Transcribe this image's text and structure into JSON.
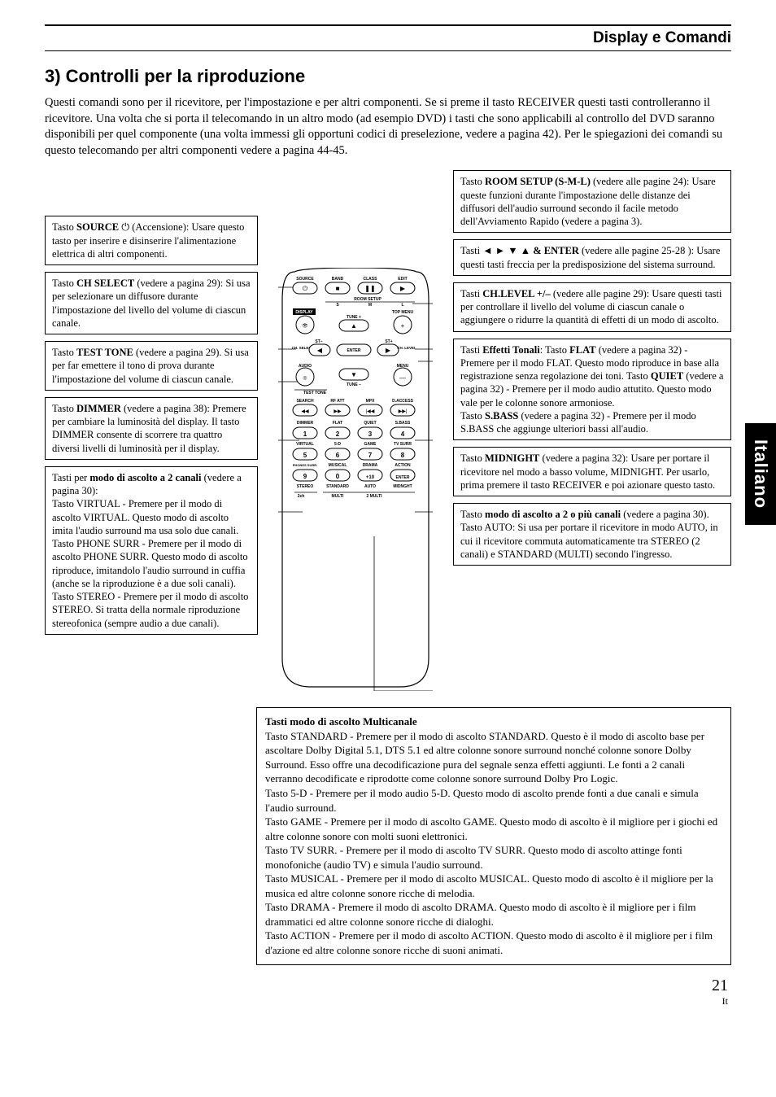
{
  "header": {
    "category": "Display e Comandi",
    "section_title": "3) Controlli per la riproduzione",
    "intro": "Questi comandi sono per il ricevitore, per l'impostazione e per altri componenti. Se si preme il tasto RECEIVER questi tasti controlleranno il ricevitore. Una volta che si porta il telecomando in un altro modo (ad esempio DVD) i tasti che sono applicabili al controllo del DVD saranno disponibili per quel componente (una volta immessi gli opportuni codici di preselezione, vedere a pagina 42). Per le spiegazioni dei comandi su questo telecomando per altri componenti vedere a pagina 44-45."
  },
  "left_boxes": [
    {
      "html": "Tasto <b>SOURCE</b> ⏻ (Accensione): Usare questo tasto per inserire e disinserire l'alimentazione elettrica di altri componenti."
    },
    {
      "html": "Tasto <b>CH SELECT</b> (vedere a pagina 29): Si usa per selezionare un diffusore durante l'impostazione del livello del volume di ciascun canale."
    },
    {
      "html": "Tasto <b>TEST TONE</b> (vedere a pagina 29). Si usa per far emettere il tono di prova durante l'impostazione del volume di ciascun canale."
    },
    {
      "html": "Tasto <b>DIMMER</b> (vedere a pagina 38): Premere per cambiare la luminosità del display. Il tasto DIMMER consente di scorrere tra quattro diversi livelli di luminosità per il display."
    },
    {
      "html": "Tasti per <b>modo di ascolto a 2 canali</b> (vedere a pagina 30):<br>Tasto VIRTUAL - Premere per il modo di ascolto VIRTUAL. Questo modo di ascolto imita l'audio surround ma usa solo due canali.<br>Tasto PHONE SURR - Premere per il modo di ascolto PHONE SURR. Questo modo di ascolto riproduce, imitandolo l'audio surround in cuffia (anche se la riproduzione è a due soli canali).<br>Tasto STEREO - Premere per il modo di ascolto STEREO. Si tratta della normale riproduzione stereofonica (sempre audio a due canali)."
    }
  ],
  "right_boxes": [
    {
      "html": "Tasto <b>ROOM SETUP (S-M-L)</b> (vedere alle pagine 24): Usare queste funzioni durante l'impostazione delle distanze dei diffusori dell'audio surround secondo il facile metodo dell'Avviamento Rapido (vedere a pagina 3)."
    },
    {
      "html": "Tasti <b>◄ ► ▼ ▲ & ENTER</b> (vedere alle pagine 25-28 ): Usare questi tasti freccia per la predisposizione del sistema surround."
    },
    {
      "html": "Tasti <b>CH.LEVEL +/–</b> (vedere alle pagine 29): Usare questi tasti per controllare il livello del volume di ciascun canale o aggiungere o ridurre la quantità di effetti di un modo di ascolto."
    },
    {
      "html": "Tasti <b>Effetti Tonali</b>: Tasto <b>FLAT</b> (vedere a pagina 32) - Premere per il modo FLAT. Questo modo riproduce in base alla registrazione senza regolazione dei toni. Tasto <b>QUIET</b> (vedere a pagina 32) - Premere per il modo audio attutito. Questo modo vale per le colonne sonore armoniose.<br>Tasto <b>S.BASS</b> (vedere a pagina 32) - Premere per il modo S.BASS che aggiunge ulteriori bassi all'audio."
    },
    {
      "html": "Tasto <b>MIDNIGHT</b> (vedere a pagina 32): Usare per portare il ricevitore nel modo a basso volume, MIDNIGHT. Per usarlo, prima premere il tasto RECEIVER e poi azionare questo tasto."
    },
    {
      "html": "Tasto <b>modo di ascolto a 2 o più canali</b> (vedere a pagina 30). Tasto AUTO: Si usa per portare il ricevitore in modo AUTO, in cui il ricevitore commuta automaticamente tra STEREO (2 canali) e STANDARD (MULTI) secondo l'ingresso."
    }
  ],
  "bottom_box": {
    "title": "Tasti modo di ascolto Multicanale",
    "body": "Tasto STANDARD - Premere per il modo di ascolto STANDARD. Questo è il modo di ascolto base per ascoltare Dolby Digital 5.1, DTS 5.1 ed altre colonne sonore surround nonché colonne sonore Dolby Surround. Esso offre una decodificazione pura del segnale senza effetti aggiunti. Le fonti a 2 canali verranno decodificate e riprodotte come colonne sonore surround Dolby Pro Logic.\nTasto 5-D - Premere per il modo audio 5-D. Questo modo di ascolto prende fonti a due canali e simula l'audio surround.\nTasto GAME - Premere per il modo di ascolto GAME. Questo modo di ascolto è il migliore per i giochi ed altre colonne sonore con molti suoni elettronici.\nTasto TV SURR. - Premere per il modo di ascolto TV SURR. Questo modo di ascolto attinge fonti monofoniche (audio TV) e simula l'audio surround.\nTasto MUSICAL - Premere per il modo di ascolto MUSICAL. Questo modo di ascolto è il migliore per la musica ed altre colonne sonore ricche di melodia.\nTasto DRAMA - Premere il modo di ascolto DRAMA. Questo modo di ascolto è il migliore per i film drammatici ed altre colonne sonore ricche di dialoghi.\nTasto ACTION - Premere per il modo di ascolto ACTION. Questo modo di ascolto è il migliore per i film d'azione ed altre colonne sonore ricche di suoni animati."
  },
  "remote": {
    "row1_labels": [
      "SOURCE",
      "BAND",
      "CLASS",
      "EDIT"
    ],
    "room_setup": "ROOM SETUP",
    "sml": [
      "S",
      "M",
      "L"
    ],
    "display": "DISPLAY",
    "top_menu": "TOP MENU",
    "tune_plus": "TUNE +",
    "tune_minus": "TUNE –",
    "ch_select": "CH. SELECT",
    "ch_level": "CH. LEVEL",
    "st_minus": "ST–",
    "st_plus": "ST+",
    "enter": "ENTER",
    "audio": "AUDIO",
    "menu": "MENU",
    "test_tone": "TEST TONE",
    "row_transport": [
      "SEARCH",
      "RF ATT",
      "MPX",
      "D.ACCESS"
    ],
    "row_tone": [
      "DIMMER",
      "FLAT",
      "QUIET",
      "S.BASS"
    ],
    "num_row1": [
      "1",
      "2",
      "3",
      "4"
    ],
    "num_row1_lbl": [
      "VIRTUAL",
      "5-D",
      "GAME",
      "TV SURR"
    ],
    "num_row2": [
      "5",
      "6",
      "7",
      "8"
    ],
    "num_row2_lbl": [
      "PHONES SURR.",
      "MUSICAL",
      "DRAMA",
      "ACTION"
    ],
    "num_row3": [
      "9",
      "0",
      "+10",
      "ENTER"
    ],
    "num_row3_lbl": [
      "STEREO",
      "STANDARD",
      "AUTO",
      "MIDNGHT"
    ],
    "multi_row": [
      "2ch",
      "MULTI",
      "2 MULTI"
    ]
  },
  "side_tab": "Italiano",
  "page_number": "21",
  "page_lang": "It"
}
